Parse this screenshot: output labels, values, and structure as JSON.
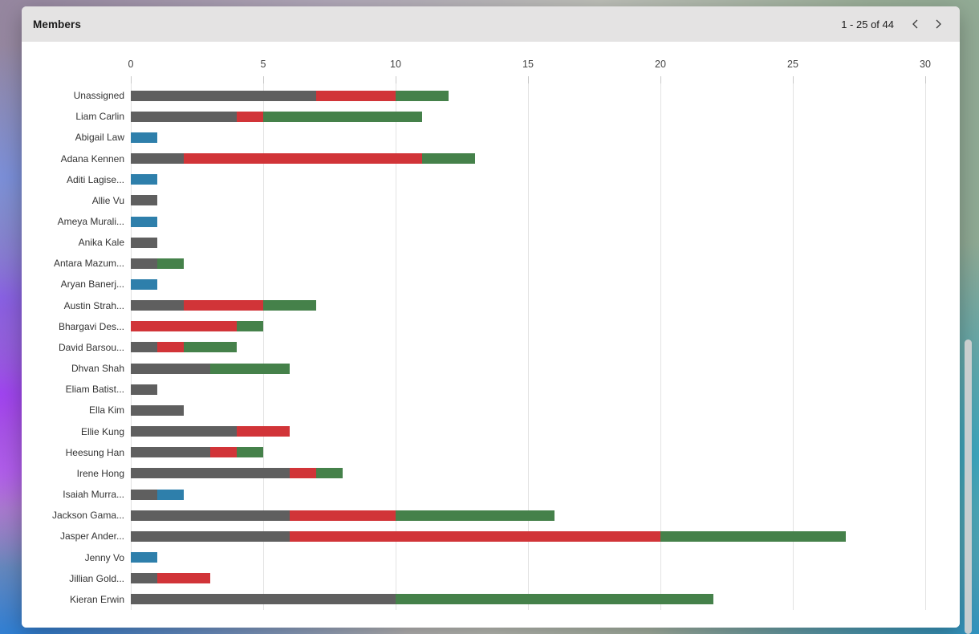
{
  "window": {
    "title": "Members",
    "pagination": {
      "label": "1 - 25 of 44",
      "prev_icon": "chevron-left",
      "next_icon": "chevron-right"
    }
  },
  "colors": {
    "titlebar_bg": "#e4e3e3",
    "gridline": "#e3e3e3",
    "axis_text": "#424242",
    "category_text": "#333333"
  },
  "chart_data": {
    "type": "bar",
    "orientation": "horizontal",
    "stacked": true,
    "title": "Members",
    "xlim": [
      0,
      30
    ],
    "x_ticks": [
      0,
      5,
      10,
      15,
      20,
      25,
      30
    ],
    "grid": true,
    "legend": false,
    "series_colors": {
      "gray": "#5f5f5f",
      "red": "#d13438",
      "green": "#45814a",
      "blue": "#2e7fab"
    },
    "rows": [
      {
        "label": "Unassigned",
        "segments": [
          {
            "series": "gray",
            "value": 7
          },
          {
            "series": "red",
            "value": 3
          },
          {
            "series": "green",
            "value": 2
          }
        ]
      },
      {
        "label": "Liam Carlin",
        "segments": [
          {
            "series": "gray",
            "value": 4
          },
          {
            "series": "red",
            "value": 1
          },
          {
            "series": "green",
            "value": 6
          }
        ]
      },
      {
        "label": "Abigail Law",
        "segments": [
          {
            "series": "blue",
            "value": 1
          }
        ]
      },
      {
        "label": "Adana Kennen",
        "segments": [
          {
            "series": "gray",
            "value": 2
          },
          {
            "series": "red",
            "value": 9
          },
          {
            "series": "green",
            "value": 2
          }
        ]
      },
      {
        "label": "Aditi Lagise...",
        "segments": [
          {
            "series": "blue",
            "value": 1
          }
        ]
      },
      {
        "label": "Allie Vu",
        "segments": [
          {
            "series": "gray",
            "value": 1
          }
        ]
      },
      {
        "label": "Ameya Murali...",
        "segments": [
          {
            "series": "blue",
            "value": 1
          }
        ]
      },
      {
        "label": "Anika Kale",
        "segments": [
          {
            "series": "gray",
            "value": 1
          }
        ]
      },
      {
        "label": "Antara Mazum...",
        "segments": [
          {
            "series": "gray",
            "value": 1
          },
          {
            "series": "green",
            "value": 1
          }
        ]
      },
      {
        "label": "Aryan Banerj...",
        "segments": [
          {
            "series": "blue",
            "value": 1
          }
        ]
      },
      {
        "label": "Austin Strah...",
        "segments": [
          {
            "series": "gray",
            "value": 2
          },
          {
            "series": "red",
            "value": 3
          },
          {
            "series": "green",
            "value": 2
          }
        ]
      },
      {
        "label": "Bhargavi Des...",
        "segments": [
          {
            "series": "red",
            "value": 4
          },
          {
            "series": "green",
            "value": 1
          }
        ]
      },
      {
        "label": "David Barsou...",
        "segments": [
          {
            "series": "gray",
            "value": 1
          },
          {
            "series": "red",
            "value": 1
          },
          {
            "series": "green",
            "value": 2
          }
        ]
      },
      {
        "label": "Dhvan Shah",
        "segments": [
          {
            "series": "gray",
            "value": 3
          },
          {
            "series": "green",
            "value": 3
          }
        ]
      },
      {
        "label": "Eliam Batist...",
        "segments": [
          {
            "series": "gray",
            "value": 1
          }
        ]
      },
      {
        "label": "Ella Kim",
        "segments": [
          {
            "series": "gray",
            "value": 2
          }
        ]
      },
      {
        "label": "Ellie Kung",
        "segments": [
          {
            "series": "gray",
            "value": 4
          },
          {
            "series": "red",
            "value": 2
          }
        ]
      },
      {
        "label": "Heesung Han",
        "segments": [
          {
            "series": "gray",
            "value": 3
          },
          {
            "series": "red",
            "value": 1
          },
          {
            "series": "green",
            "value": 1
          }
        ]
      },
      {
        "label": "Irene Hong",
        "segments": [
          {
            "series": "gray",
            "value": 6
          },
          {
            "series": "red",
            "value": 1
          },
          {
            "series": "green",
            "value": 1
          }
        ]
      },
      {
        "label": "Isaiah Murra...",
        "segments": [
          {
            "series": "gray",
            "value": 1
          },
          {
            "series": "blue",
            "value": 1
          }
        ]
      },
      {
        "label": "Jackson Gama...",
        "segments": [
          {
            "series": "gray",
            "value": 6
          },
          {
            "series": "red",
            "value": 4
          },
          {
            "series": "green",
            "value": 6
          }
        ]
      },
      {
        "label": "Jasper Ander...",
        "segments": [
          {
            "series": "gray",
            "value": 6
          },
          {
            "series": "red",
            "value": 14
          },
          {
            "series": "green",
            "value": 7
          }
        ]
      },
      {
        "label": "Jenny Vo",
        "segments": [
          {
            "series": "blue",
            "value": 1
          }
        ]
      },
      {
        "label": "Jillian Gold...",
        "segments": [
          {
            "series": "gray",
            "value": 1
          },
          {
            "series": "red",
            "value": 2
          }
        ]
      },
      {
        "label": "Kieran Erwin",
        "segments": [
          {
            "series": "gray",
            "value": 10
          },
          {
            "series": "green",
            "value": 12
          }
        ]
      }
    ]
  }
}
